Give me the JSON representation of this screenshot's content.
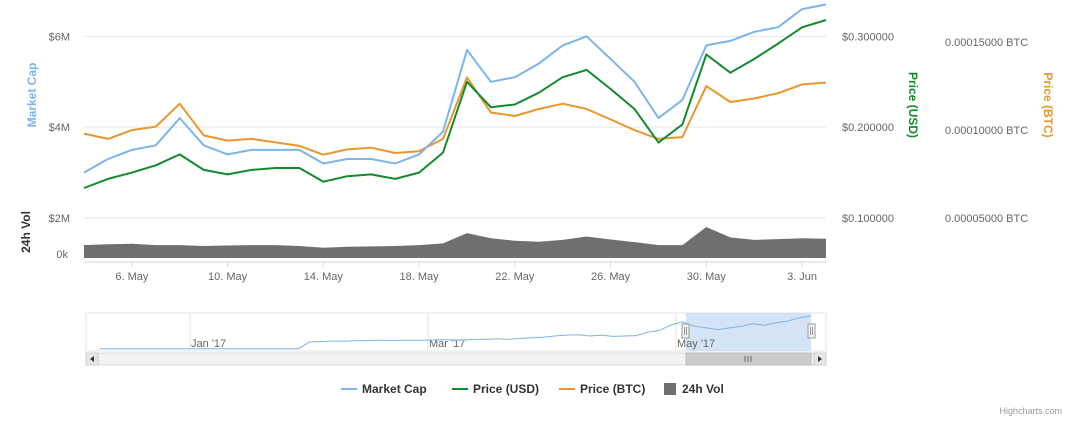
{
  "colors": {
    "market_cap": "#7cb5ec",
    "price_usd": "#138a2e",
    "price_btc": "#e8962e",
    "volume": "#6f6f6f",
    "grid": "#e6e6e6",
    "navigator_fill": "#c5d9f1"
  },
  "credits": "Highcharts.com",
  "chart_data": {
    "type": "line",
    "x": [
      "2017-05-04",
      "2017-05-05",
      "2017-05-06",
      "2017-05-07",
      "2017-05-08",
      "2017-05-09",
      "2017-05-10",
      "2017-05-11",
      "2017-05-12",
      "2017-05-13",
      "2017-05-14",
      "2017-05-15",
      "2017-05-16",
      "2017-05-17",
      "2017-05-18",
      "2017-05-19",
      "2017-05-20",
      "2017-05-21",
      "2017-05-22",
      "2017-05-23",
      "2017-05-24",
      "2017-05-25",
      "2017-05-26",
      "2017-05-27",
      "2017-05-28",
      "2017-05-29",
      "2017-05-30",
      "2017-05-31",
      "2017-06-01",
      "2017-06-02",
      "2017-06-03",
      "2017-06-04"
    ],
    "x_ticks": [
      {
        "date": "2017-05-06",
        "label": "6. May"
      },
      {
        "date": "2017-05-10",
        "label": "10. May"
      },
      {
        "date": "2017-05-14",
        "label": "14. May"
      },
      {
        "date": "2017-05-18",
        "label": "18. May"
      },
      {
        "date": "2017-05-22",
        "label": "22. May"
      },
      {
        "date": "2017-05-26",
        "label": "26. May"
      },
      {
        "date": "2017-05-30",
        "label": "30. May"
      },
      {
        "date": "2017-06-03",
        "label": "3. Jun"
      }
    ],
    "axes": {
      "market_cap": {
        "title": "Market Cap",
        "ticks": [
          "$2M",
          "$4M",
          "$6M"
        ],
        "tick_values": [
          2,
          4,
          6
        ],
        "range": [
          2,
          6.8
        ]
      },
      "price_usd": {
        "title": "Price (USD)",
        "ticks": [
          "$0.100000",
          "$0.200000",
          "$0.300000"
        ],
        "tick_values": [
          0.1,
          0.2,
          0.3
        ],
        "range": [
          0.1,
          0.34
        ]
      },
      "price_btc": {
        "title": "Price (BTC)",
        "ticks": [
          "0.00005000 BTC",
          "0.00010000 BTC",
          "0.00015000 BTC"
        ],
        "tick_values": [
          5e-05,
          0.0001,
          0.00015
        ],
        "range": [
          5e-05,
          0.000174
        ]
      },
      "volume": {
        "title": "24h Vol",
        "ticks": [
          "0k"
        ],
        "tick_values": [
          0
        ]
      }
    },
    "series": [
      {
        "name": "Market Cap",
        "key": "market_cap",
        "values": [
          3.0,
          3.3,
          3.5,
          3.6,
          4.2,
          3.6,
          3.4,
          3.5,
          3.5,
          3.5,
          3.2,
          3.3,
          3.3,
          3.2,
          3.4,
          3.9,
          5.7,
          5.0,
          5.1,
          5.4,
          5.8,
          6.0,
          5.5,
          5.0,
          4.2,
          4.6,
          5.8,
          5.9,
          6.1,
          6.2,
          6.6,
          6.7
        ]
      },
      {
        "name": "Price (USD)",
        "key": "price_usd",
        "values": [
          0.133,
          0.143,
          0.15,
          0.158,
          0.17,
          0.153,
          0.148,
          0.153,
          0.155,
          0.155,
          0.14,
          0.146,
          0.148,
          0.143,
          0.15,
          0.172,
          0.25,
          0.222,
          0.225,
          0.238,
          0.255,
          0.263,
          0.242,
          0.22,
          0.183,
          0.203,
          0.28,
          0.26,
          0.275,
          0.292,
          0.31,
          0.318
        ]
      },
      {
        "name": "Price (BTC)",
        "key": "price_btc",
        "values": [
          9.8e-05,
          9.5e-05,
          0.0001,
          0.000102,
          0.000115,
          9.7e-05,
          9.4e-05,
          9.5e-05,
          9.3e-05,
          9.1e-05,
          8.6e-05,
          8.9e-05,
          9e-05,
          8.7e-05,
          8.8e-05,
          9.5e-05,
          0.00013,
          0.00011,
          0.000108,
          0.000112,
          0.000115,
          0.000112,
          0.000106,
          0.0001,
          9.5e-05,
          9.6e-05,
          0.000125,
          0.000116,
          0.000118,
          0.000121,
          0.000126,
          0.000127
        ]
      },
      {
        "name": "24h Vol",
        "key": "volume",
        "values": [
          0.3,
          0.32,
          0.33,
          0.3,
          0.3,
          0.28,
          0.29,
          0.3,
          0.3,
          0.28,
          0.24,
          0.26,
          0.27,
          0.28,
          0.3,
          0.34,
          0.58,
          0.46,
          0.4,
          0.38,
          0.42,
          0.5,
          0.43,
          0.37,
          0.3,
          0.3,
          0.72,
          0.48,
          0.42,
          0.44,
          0.46,
          0.45
        ]
      }
    ],
    "navigator": {
      "labels": [
        "Jan '17",
        "Mar '17",
        "May '17"
      ],
      "values": [
        0.3,
        0.3,
        0.3,
        0.3,
        0.3,
        0.3,
        0.3,
        0.3,
        0.3,
        0.3,
        0.3,
        0.3,
        0.3,
        0.3,
        0.3,
        0.3,
        0.3,
        0.3,
        1.9,
        2.0,
        2.1,
        2.1,
        2.2,
        2.2,
        2.3,
        2.2,
        2.3,
        2.3,
        2.3,
        2.4,
        2.4,
        2.3,
        2.5,
        2.5,
        2.6,
        2.5,
        2.7,
        2.9,
        3.0,
        3.3,
        3.5,
        3.6,
        3.3,
        3.5,
        3.2,
        3.3,
        3.4,
        4.2,
        4.6,
        5.9,
        6.6,
        5.6,
        5.2,
        4.8,
        5.2,
        5.6,
        6.2,
        5.8,
        6.4,
        6.8,
        7.6,
        8.0
      ]
    },
    "legend": [
      "Market Cap",
      "Price (USD)",
      "Price (BTC)",
      "24h Vol"
    ],
    "legend_position": "bottom-center",
    "grid": true
  }
}
